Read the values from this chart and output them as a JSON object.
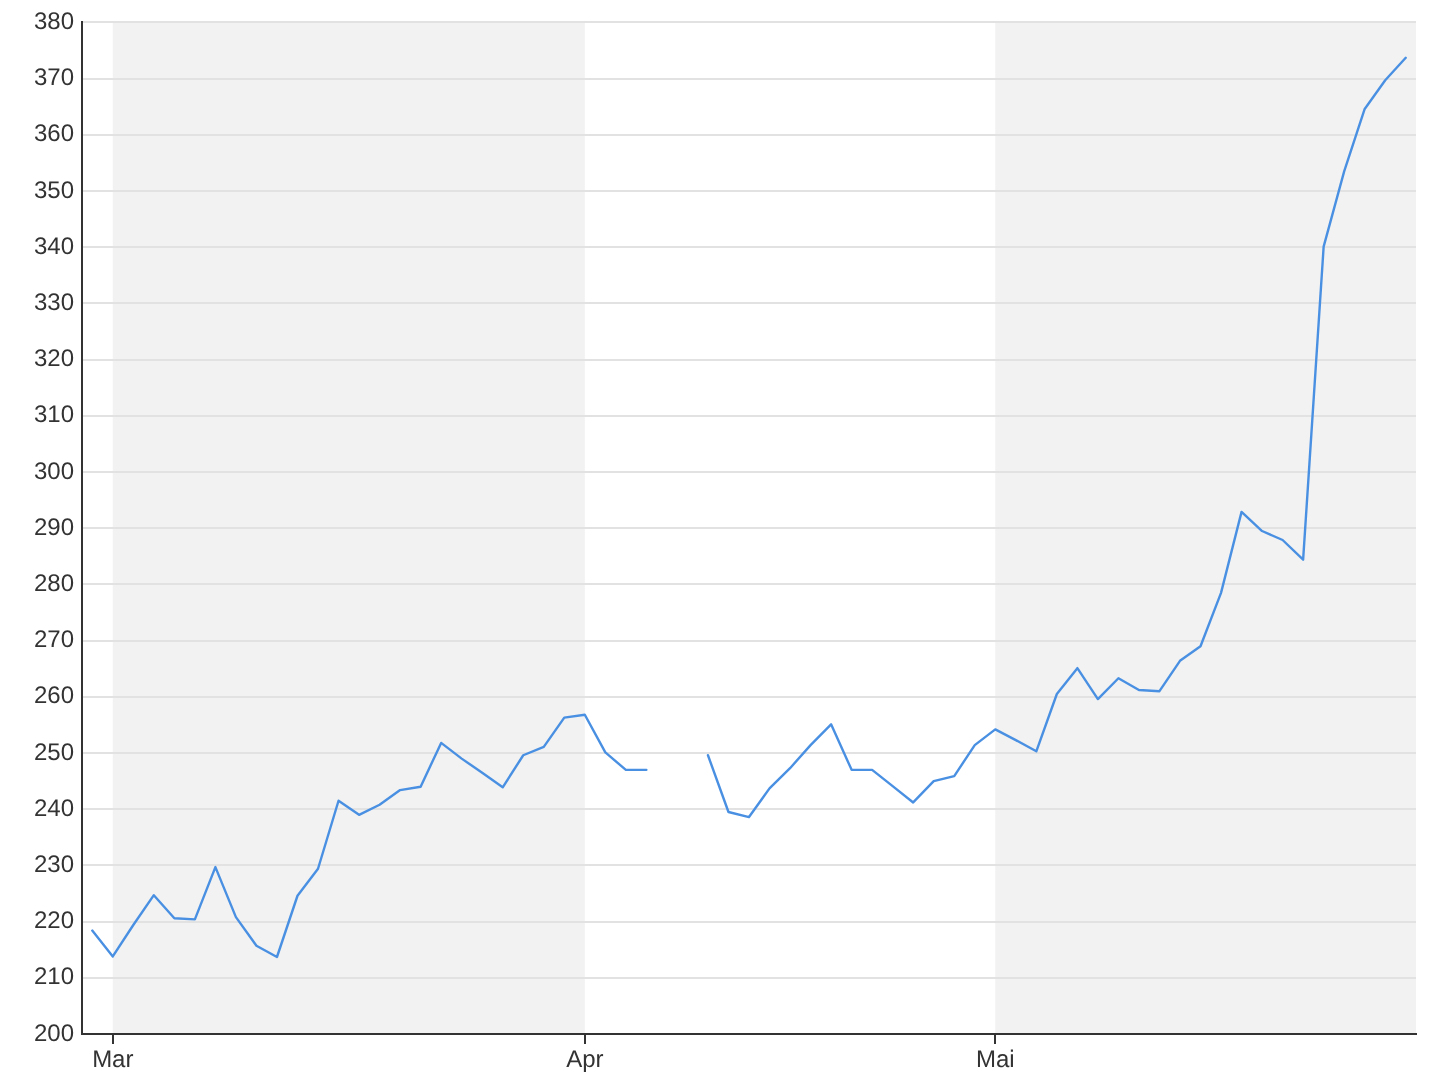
{
  "chart_data": {
    "type": "line",
    "categories": [
      null,
      "Mar",
      null,
      null,
      null,
      null,
      null,
      null,
      null,
      null,
      null,
      null,
      null,
      null,
      null,
      null,
      null,
      null,
      null,
      null,
      null,
      null,
      null,
      null,
      "Apr",
      null,
      null,
      null,
      null,
      null,
      null,
      null,
      null,
      null,
      null,
      null,
      null,
      null,
      null,
      null,
      null,
      null,
      null,
      null,
      "Mai",
      null,
      null,
      null,
      null,
      null,
      null,
      null,
      null,
      null,
      null,
      null,
      null,
      null,
      null,
      null,
      null,
      null,
      null,
      null,
      null
    ],
    "series": [
      {
        "color": "#4a90e2",
        "values": [
          218.4,
          213.8,
          219.4,
          224.7,
          220.6,
          220.4,
          229.7,
          220.8,
          215.7,
          213.7,
          224.6,
          229.4,
          241.5,
          239.0,
          240.8,
          243.4,
          244.0,
          251.8,
          249.0,
          246.5,
          243.9,
          249.6,
          251.1,
          256.3,
          256.8,
          250.1,
          247.0,
          247.0,
          null,
          null,
          249.6,
          239.5,
          238.6,
          243.7,
          247.3,
          251.4,
          255.1,
          247.0,
          247.0,
          244.1,
          241.2,
          245.0,
          245.9,
          251.4,
          254.2,
          252.3,
          250.3,
          260.5,
          265.1,
          259.6,
          263.3,
          261.2,
          261.0,
          266.4,
          269.0,
          278.5,
          292.9,
          289.5,
          287.9,
          284.4,
          340.1,
          353.5,
          364.6,
          369.7,
          373.7
        ]
      }
    ],
    "ylim": [
      200,
      380
    ],
    "yticks": [
      200,
      210,
      220,
      230,
      240,
      250,
      260,
      270,
      280,
      290,
      300,
      310,
      320,
      330,
      340,
      350,
      360,
      370,
      380
    ],
    "bands": [
      {
        "axis": "x",
        "from": "Mar",
        "to": "Apr",
        "color": "#f2f2f2"
      }
    ],
    "grid": "y",
    "marker": "none"
  }
}
